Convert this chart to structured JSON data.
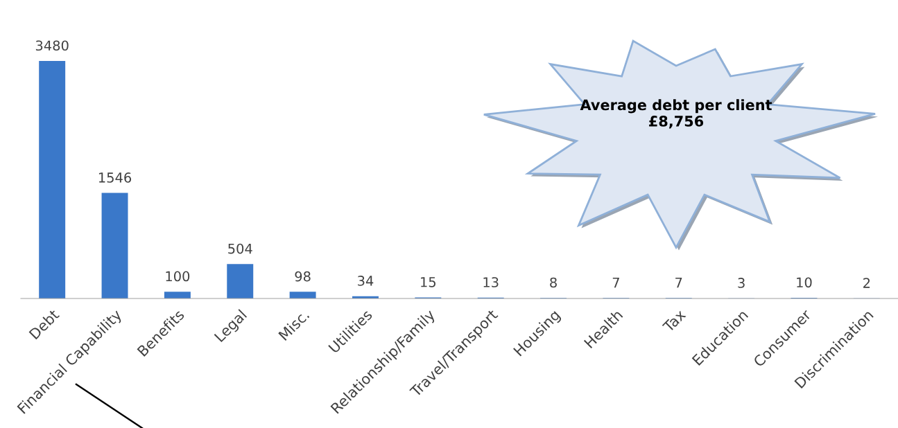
{
  "chart_data": {
    "type": "bar",
    "categories": [
      "Debt",
      "Financial Capability",
      "Benefits",
      "Legal",
      "Misc.",
      "Utilities",
      "Relationship/Family",
      "Travel/Transport",
      "Housing",
      "Health",
      "Tax",
      "Education",
      "Consumer",
      "Discrimination"
    ],
    "values": [
      3480,
      1546,
      100,
      504,
      98,
      34,
      15,
      13,
      8,
      7,
      7,
      3,
      10,
      2
    ],
    "color": "#3a78c9",
    "data_labels": true,
    "annotations": [
      "Average debt per client £8,756"
    ]
  }
}
